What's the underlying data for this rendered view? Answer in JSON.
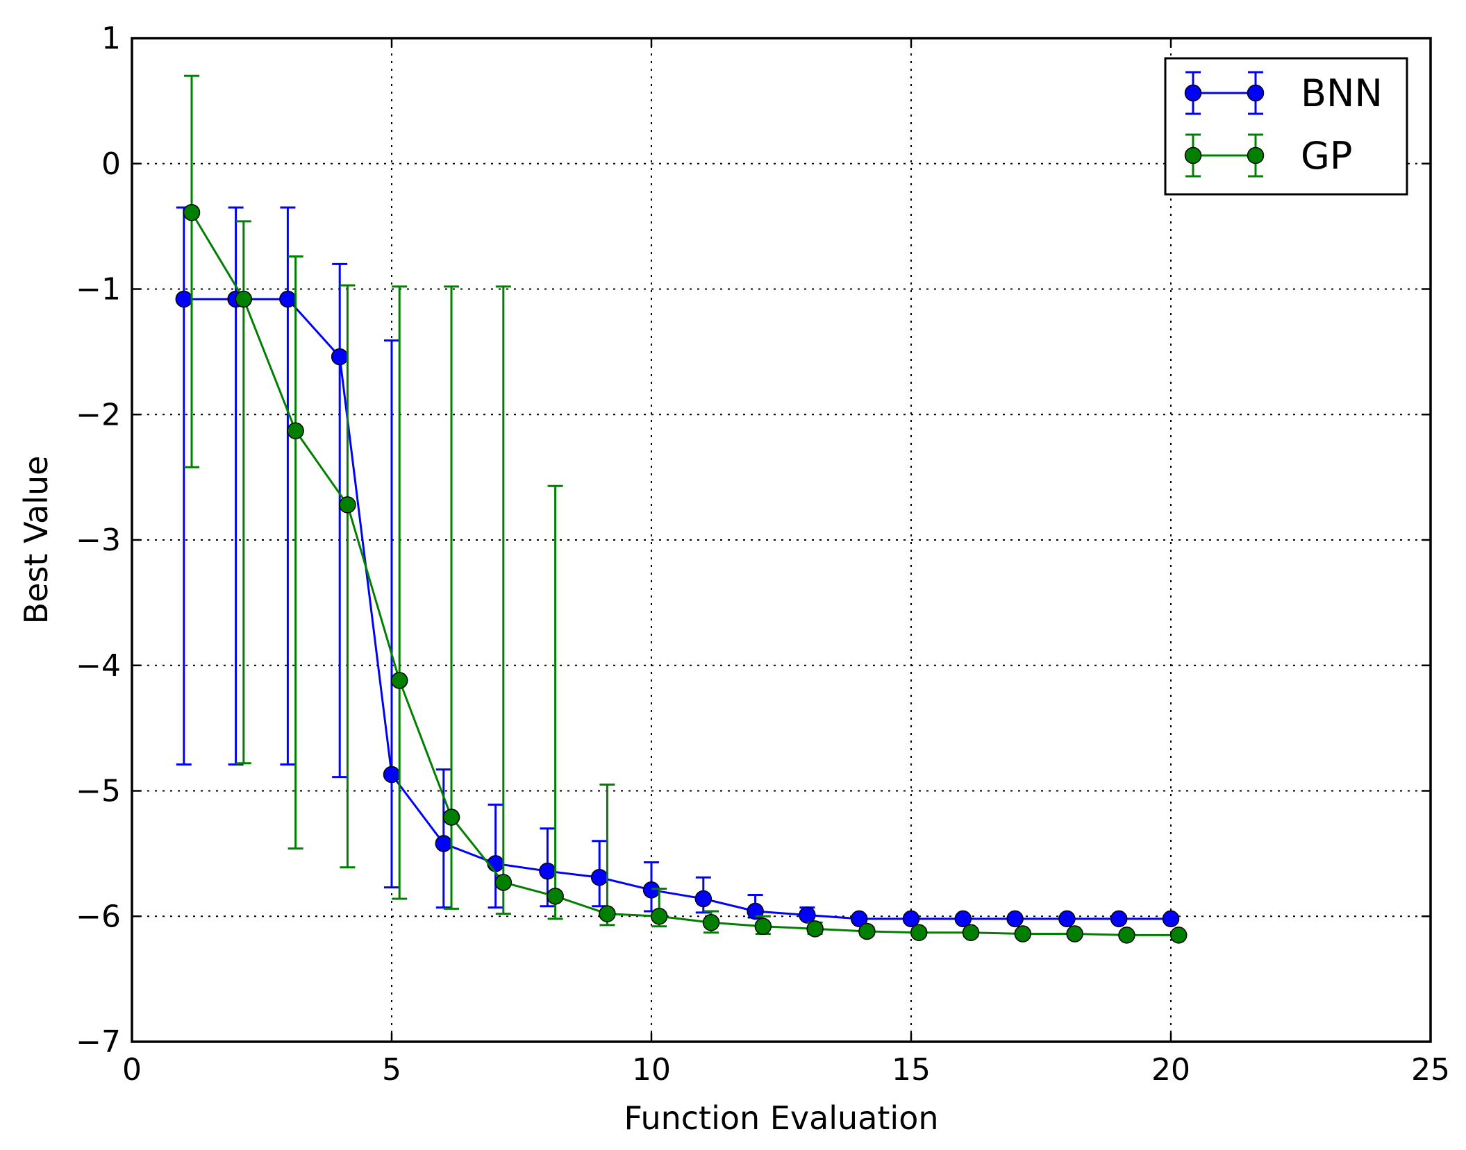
{
  "chart_data": {
    "type": "line",
    "xlabel": "Function Evaluation",
    "ylabel": "Best Value",
    "xlim": [
      0,
      25
    ],
    "ylim": [
      -7,
      1
    ],
    "xticks": [
      0,
      5,
      10,
      15,
      20,
      25
    ],
    "yticks": [
      1,
      0,
      -1,
      -2,
      -3,
      -4,
      -5,
      -6,
      -7
    ],
    "xtick_labels": [
      "0",
      "5",
      "10",
      "15",
      "20",
      "25"
    ],
    "ytick_labels": [
      "1",
      "0",
      "−1",
      "−2",
      "−3",
      "−4",
      "−5",
      "−6",
      "−7"
    ],
    "grid": true,
    "legend_position": "top-right",
    "error_bars": true,
    "series": [
      {
        "name": "BNN",
        "color": "#0000ff",
        "marker": "circle",
        "x": [
          1,
          2,
          3,
          4,
          5,
          6,
          7,
          8,
          9,
          10,
          11,
          12,
          13,
          14,
          15,
          16,
          17,
          18,
          19,
          20
        ],
        "y": [
          -1.08,
          -1.08,
          -1.08,
          -1.54,
          -4.87,
          -5.42,
          -5.58,
          -5.64,
          -5.69,
          -5.79,
          -5.86,
          -5.96,
          -5.99,
          -6.02,
          -6.02,
          -6.02,
          -6.02,
          -6.02,
          -6.02,
          -6.02
        ],
        "err_low": [
          -4.79,
          -4.79,
          -4.79,
          -4.89,
          -5.77,
          -5.93,
          -5.93,
          -5.92,
          -5.92,
          -5.96,
          -5.97,
          -6.01,
          -6.01,
          -6.02,
          -6.02,
          -6.02,
          -6.02,
          -6.02,
          -6.02,
          -6.02
        ],
        "err_high": [
          -0.35,
          -0.35,
          -0.35,
          -0.8,
          -1.41,
          -4.83,
          -5.11,
          -5.3,
          -5.4,
          -5.57,
          -5.69,
          -5.83,
          -5.93,
          -6.0,
          -6.01,
          -6.01,
          -6.01,
          -6.01,
          -6.01,
          -6.01
        ]
      },
      {
        "name": "GP",
        "color": "#007f00",
        "marker": "circle",
        "x": [
          1.15,
          2.15,
          3.15,
          4.15,
          5.15,
          6.15,
          7.15,
          8.15,
          9.15,
          10.15,
          11.15,
          12.15,
          13.15,
          14.15,
          15.15,
          16.15,
          17.15,
          18.15,
          19.15,
          20.15
        ],
        "y": [
          -0.39,
          -1.08,
          -2.13,
          -2.72,
          -4.12,
          -5.21,
          -5.73,
          -5.84,
          -5.98,
          -6.0,
          -6.05,
          -6.08,
          -6.1,
          -6.12,
          -6.13,
          -6.13,
          -6.14,
          -6.14,
          -6.15,
          -6.15
        ],
        "err_low": [
          -2.42,
          -4.78,
          -5.46,
          -5.61,
          -5.86,
          -5.94,
          -5.98,
          -6.02,
          -6.07,
          -6.08,
          -6.13,
          -6.14,
          -6.14,
          -6.15,
          -6.15,
          -6.16,
          -6.16,
          -6.16,
          -6.17,
          -6.17
        ],
        "err_high": [
          0.7,
          -0.46,
          -0.74,
          -0.97,
          -0.98,
          -0.98,
          -0.98,
          -2.57,
          -4.95,
          -5.78,
          -5.96,
          -6.0,
          -6.05,
          -6.09,
          -6.1,
          -6.11,
          -6.12,
          -6.12,
          -6.13,
          -6.13
        ]
      }
    ]
  }
}
